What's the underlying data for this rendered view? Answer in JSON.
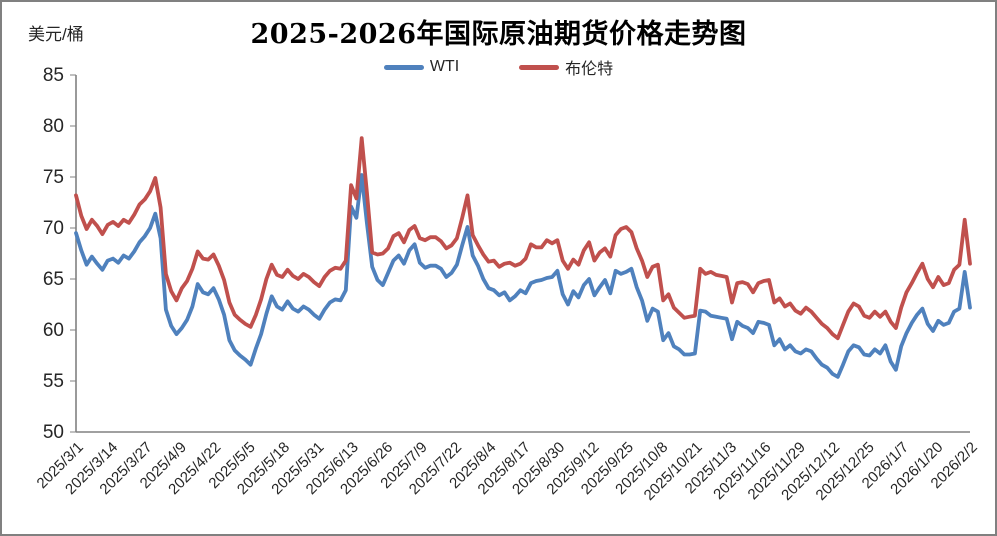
{
  "ui": {
    "frame_border_color": "#808080",
    "background_color": "#ffffff",
    "text_color": "#262626"
  },
  "chart_data": {
    "type": "line",
    "title": "2025-2026年国际原油期货价格走势图",
    "ylabel": "美元/桶",
    "xlabel": "",
    "ylim": [
      50,
      85
    ],
    "y_ticks": [
      85,
      80,
      75,
      70,
      65,
      60,
      55,
      50
    ],
    "grid": false,
    "legend_position": "top",
    "axis_color": "#808080",
    "x_tick_labels": [
      "2025/3/1",
      "2025/3/14",
      "2025/3/27",
      "2025/4/9",
      "2025/4/22",
      "2025/5/5",
      "2025/5/18",
      "2025/5/31",
      "2025/6/13",
      "2025/6/26",
      "2025/7/9",
      "2025/7/22",
      "2025/8/4",
      "2025/8/17",
      "2025/8/30",
      "2025/9/12",
      "2025/9/25",
      "2025/10/8",
      "2025/10/21",
      "2025/11/3",
      "2025/11/16",
      "2025/11/29",
      "2025/12/12",
      "2025/12/25",
      "2026/1/7",
      "2026/1/20",
      "2026/2/2"
    ],
    "x_start": "2025/3/1",
    "x_end": "2026/2/2",
    "span_days": 338,
    "step_days": 2,
    "series": [
      {
        "name": "WTI",
        "color": "#4F81BD",
        "values": [
          69.5,
          67.8,
          66.4,
          67.2,
          66.5,
          65.9,
          66.8,
          67.0,
          66.6,
          67.3,
          67.0,
          67.7,
          68.6,
          69.2,
          70.0,
          71.4,
          69.0,
          62.0,
          60.4,
          59.6,
          60.2,
          61.0,
          62.3,
          64.5,
          63.7,
          63.5,
          64.1,
          63.0,
          61.5,
          59.0,
          58.0,
          57.5,
          57.1,
          56.6,
          58.2,
          59.6,
          61.6,
          63.3,
          62.3,
          62.0,
          62.8,
          62.1,
          61.8,
          62.3,
          62.0,
          61.5,
          61.1,
          62.0,
          62.7,
          63.0,
          62.9,
          63.9,
          72.1,
          71.0,
          75.2,
          70.5,
          66.2,
          64.9,
          64.4,
          65.6,
          66.8,
          67.3,
          66.5,
          67.8,
          68.4,
          66.6,
          66.1,
          66.3,
          66.3,
          66.0,
          65.2,
          65.6,
          66.4,
          68.3,
          70.1,
          67.3,
          66.3,
          65.0,
          64.1,
          63.9,
          63.4,
          63.7,
          62.9,
          63.3,
          63.9,
          63.6,
          64.6,
          64.8,
          64.9,
          65.1,
          65.2,
          65.8,
          63.5,
          62.5,
          63.8,
          63.2,
          64.4,
          65.0,
          63.4,
          64.2,
          64.9,
          63.6,
          65.8,
          65.5,
          65.7,
          66.0,
          64.2,
          62.9,
          60.9,
          62.1,
          61.8,
          59.0,
          59.7,
          58.4,
          58.1,
          57.6,
          57.6,
          57.7,
          61.9,
          61.8,
          61.4,
          61.3,
          61.2,
          61.1,
          59.1,
          60.8,
          60.4,
          60.2,
          59.7,
          60.8,
          60.7,
          60.5,
          58.5,
          59.1,
          58.1,
          58.5,
          57.9,
          57.7,
          58.1,
          57.9,
          57.2,
          56.6,
          56.3,
          55.7,
          55.4,
          56.6,
          57.9,
          58.5,
          58.3,
          57.6,
          57.5,
          58.1,
          57.7,
          58.5,
          56.9,
          56.1,
          58.4,
          59.7,
          60.7,
          61.5,
          62.1,
          60.6,
          59.9,
          60.9,
          60.5,
          60.7,
          61.8,
          62.1,
          65.7,
          62.2
        ]
      },
      {
        "name": "布伦特",
        "color": "#C0504D",
        "values": [
          73.2,
          71.2,
          69.9,
          70.8,
          70.2,
          69.4,
          70.3,
          70.6,
          70.2,
          70.8,
          70.5,
          71.3,
          72.3,
          72.8,
          73.6,
          74.9,
          72.0,
          65.5,
          63.8,
          62.9,
          64.1,
          64.8,
          66.0,
          67.7,
          67.0,
          66.9,
          67.4,
          66.3,
          64.9,
          62.7,
          61.5,
          61.0,
          60.6,
          60.3,
          61.5,
          63.0,
          65.0,
          66.4,
          65.4,
          65.2,
          65.9,
          65.3,
          65.0,
          65.5,
          65.2,
          64.7,
          64.3,
          65.2,
          65.8,
          66.1,
          66.0,
          66.8,
          74.2,
          72.9,
          78.8,
          73.5,
          67.6,
          67.4,
          67.5,
          68.0,
          69.2,
          69.5,
          68.6,
          69.8,
          70.2,
          69.0,
          68.8,
          69.1,
          69.1,
          68.7,
          68.0,
          68.3,
          69.0,
          71.0,
          73.2,
          69.3,
          68.3,
          67.4,
          66.7,
          66.8,
          66.2,
          66.5,
          66.6,
          66.3,
          66.5,
          67.0,
          68.4,
          68.1,
          68.1,
          68.8,
          68.5,
          68.8,
          66.8,
          66.0,
          66.9,
          66.4,
          67.8,
          68.6,
          66.8,
          67.6,
          68.0,
          67.2,
          69.3,
          69.9,
          70.1,
          69.6,
          68.0,
          66.8,
          65.2,
          66.2,
          66.4,
          62.9,
          63.5,
          62.2,
          61.7,
          61.2,
          61.3,
          61.4,
          66.0,
          65.5,
          65.7,
          65.4,
          65.3,
          65.2,
          62.7,
          64.6,
          64.7,
          64.5,
          63.7,
          64.6,
          64.8,
          64.9,
          62.7,
          63.1,
          62.3,
          62.6,
          61.9,
          61.6,
          62.2,
          61.8,
          61.2,
          60.6,
          60.2,
          59.6,
          59.2,
          60.5,
          61.8,
          62.6,
          62.3,
          61.4,
          61.2,
          61.8,
          61.3,
          61.8,
          60.8,
          60.2,
          62.2,
          63.7,
          64.6,
          65.6,
          66.5,
          65.0,
          64.2,
          65.2,
          64.4,
          64.6,
          65.9,
          66.4,
          70.8,
          66.5
        ]
      }
    ]
  }
}
